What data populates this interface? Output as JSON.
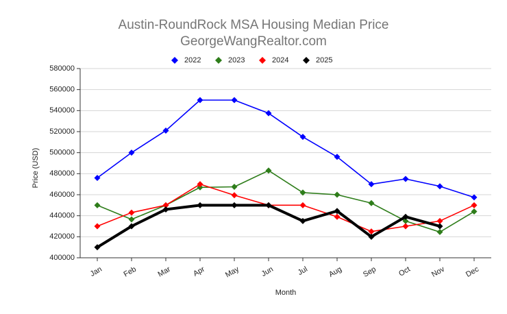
{
  "chart_data": {
    "type": "line",
    "title": "Austin-RoundRock MSA Housing Median Price",
    "subtitle": "GeorgeWangRealtor.com",
    "x_label": "Month",
    "y_label": "Price (USD)",
    "categories": [
      "Jan",
      "Feb",
      "Mar",
      "Apr",
      "May",
      "Jun",
      "Jul",
      "Aug",
      "Sep",
      "Oct",
      "Nov",
      "Dec"
    ],
    "ylim": [
      400000,
      580000
    ],
    "yticks": [
      400000,
      420000,
      440000,
      460000,
      480000,
      500000,
      520000,
      540000,
      560000,
      580000
    ],
    "grid": true,
    "legend": "top",
    "series": [
      {
        "name": "2022",
        "color": "#0000ff",
        "values": [
          476000,
          500000,
          521000,
          550000,
          550000,
          537500,
          515000,
          496000,
          470000,
          475000,
          468000,
          457500
        ]
      },
      {
        "name": "2023",
        "color": "#2e7d1a",
        "values": [
          450000,
          436500,
          450000,
          467000,
          467500,
          483000,
          462000,
          460000,
          452000,
          435000,
          424500,
          444000
        ]
      },
      {
        "name": "2024",
        "color": "#ff0000",
        "values": [
          430000,
          443000,
          450000,
          470000,
          459500,
          450000,
          450000,
          439000,
          425000,
          430000,
          435000,
          450000
        ]
      },
      {
        "name": "2025",
        "color": "#000000",
        "values": [
          410000,
          430000,
          446000,
          450000,
          450000,
          450000,
          435000,
          444500,
          420000,
          439000,
          430000,
          null
        ]
      }
    ]
  }
}
